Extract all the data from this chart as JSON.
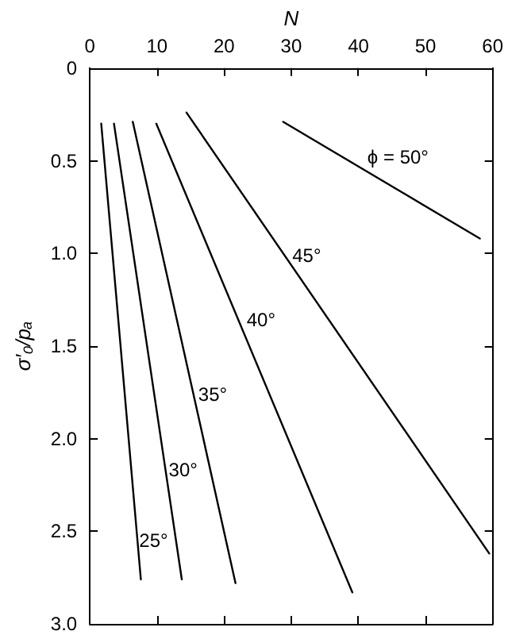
{
  "chart_data": {
    "type": "line",
    "xlabel": "N",
    "ylabel": "σ′₀/pₐ",
    "xlim": [
      0,
      60
    ],
    "xticks": [
      0,
      10,
      20,
      30,
      40,
      50,
      60
    ],
    "ylim": [
      3.0,
      0
    ],
    "yticks": [
      0,
      {
        "value": 0.5,
        "label": "0.5"
      },
      {
        "value": 1,
        "label": "1.0"
      },
      {
        "value": 1.5,
        "label": "1.5"
      },
      {
        "value": 2,
        "label": "2.0"
      },
      {
        "value": 2.5,
        "label": "2.5"
      },
      {
        "value": 3,
        "label": "3.0"
      }
    ],
    "grid": false,
    "marker": "none",
    "line_style": "solid",
    "series": [
      {
        "color": "#000000",
        "x": [
          1.7,
          7.6
        ],
        "values": [
          0.3,
          2.76
        ]
      },
      {
        "color": "#000000",
        "x": [
          3.6,
          13.7
        ],
        "values": [
          0.3,
          2.76
        ]
      },
      {
        "color": "#000000",
        "x": [
          6.4,
          21.7
        ],
        "values": [
          0.29,
          2.78
        ]
      },
      {
        "color": "#000000",
        "x": [
          9.9,
          39.1
        ],
        "values": [
          0.3,
          2.83
        ]
      },
      {
        "color": "#000000",
        "x": [
          14.4,
          59.5
        ],
        "values": [
          0.24,
          2.62
        ]
      },
      {
        "color": "#000000",
        "x": [
          28.8,
          58.1
        ],
        "values": [
          0.29,
          0.92
        ]
      }
    ],
    "annotations": [
      "25°",
      "30°",
      "35°",
      "40°",
      "45°",
      "ϕ = 50°"
    ]
  }
}
